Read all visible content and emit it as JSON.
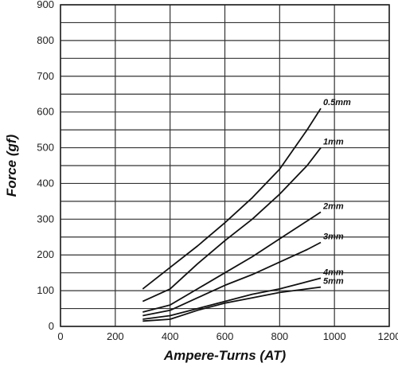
{
  "chart_data": {
    "type": "line",
    "title": "",
    "xlabel": "Ampere-Turns (AT)",
    "ylabel": "Force (gf)",
    "xlim": [
      0,
      1200
    ],
    "ylim": [
      0,
      900
    ],
    "xticks": [
      "0",
      "200",
      "400",
      "600",
      "800",
      "1000",
      "1200"
    ],
    "yticks": [
      "0",
      "100",
      "200",
      "300",
      "400",
      "500",
      "600",
      "700",
      "800",
      "900"
    ],
    "grid": true,
    "series": [
      {
        "name": "0.5mm",
        "x": [
          300,
          400,
          500,
          600,
          700,
          800,
          900,
          950
        ],
        "y": [
          105,
          165,
          225,
          290,
          360,
          440,
          550,
          610
        ]
      },
      {
        "name": "1mm",
        "x": [
          300,
          400,
          500,
          600,
          700,
          800,
          900,
          950
        ],
        "y": [
          70,
          105,
          175,
          240,
          300,
          370,
          450,
          500
        ]
      },
      {
        "name": "2mm",
        "x": [
          300,
          400,
          500,
          600,
          700,
          800,
          900,
          950
        ],
        "y": [
          40,
          60,
          105,
          150,
          195,
          245,
          295,
          320
        ]
      },
      {
        "name": "3mm",
        "x": [
          300,
          400,
          500,
          600,
          700,
          800,
          900,
          950
        ],
        "y": [
          30,
          45,
          80,
          115,
          145,
          180,
          215,
          235
        ]
      },
      {
        "name": "4mm",
        "x": [
          300,
          400,
          500,
          600,
          700,
          800,
          900,
          950
        ],
        "y": [
          20,
          30,
          50,
          70,
          90,
          105,
          125,
          135
        ]
      },
      {
        "name": "5mm",
        "x": [
          300,
          400,
          500,
          600,
          700,
          800,
          900,
          950
        ],
        "y": [
          15,
          20,
          45,
          65,
          80,
          95,
          105,
          110
        ]
      }
    ]
  }
}
